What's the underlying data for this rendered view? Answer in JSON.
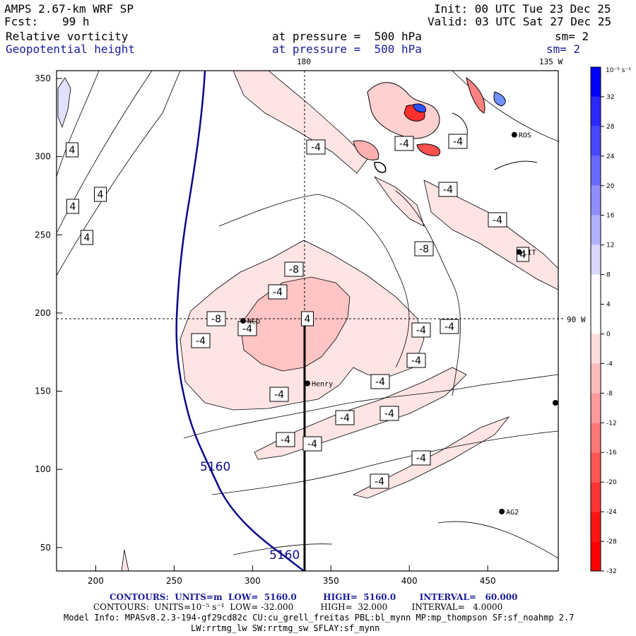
{
  "header": {
    "model": "AMPS 2.67-km WRF SP",
    "fcst_label": "Fcst:",
    "fcst_value": "99 h",
    "init": "Init: 00 UTC Tue 23 Dec 25",
    "valid": "Valid: 03 UTC Sat 27 Dec 25",
    "field1": "Relative vorticity",
    "field1_level": "at pressure =  500 hPa",
    "field1_sm": "sm= 2",
    "field2": "Geopotential height",
    "field2_level": "at pressure =  500 hPa",
    "field2_sm": "sm= 2"
  },
  "map_labels": {
    "lon_180": "180",
    "lon_135w": "135 W",
    "lon_90w": "90 W",
    "height_contour": "5160"
  },
  "stations": [
    "NCO",
    "Henry",
    "ROS",
    "LIT",
    "AG2"
  ],
  "colorbar": {
    "unit": "10⁻⁵ s⁻¹",
    "ticks": [
      "32",
      "28",
      "24",
      "20",
      "16",
      "12",
      "8",
      "4",
      "0",
      "-4",
      "-8",
      "-12",
      "-16",
      "-20",
      "-24",
      "-28",
      "-32"
    ],
    "colors": [
      "#0000ff",
      "#2a2aff",
      "#4848ff",
      "#6a6aff",
      "#8e8eff",
      "#b2b2ff",
      "#d8d8ff",
      "#ffffff",
      "#ffffff",
      "#ffdcdc",
      "#ffbcbc",
      "#ff9a9a",
      "#ff7878",
      "#ff5656",
      "#ff3434",
      "#ff1414",
      "#ff0000"
    ]
  },
  "chart_data": {
    "type": "contour-map",
    "x_ticks": [
      "200",
      "250",
      "300",
      "350",
      "400",
      "450"
    ],
    "y_ticks": [
      "50",
      "100",
      "150",
      "200",
      "250",
      "300",
      "350"
    ],
    "xlim": [
      175,
      495
    ],
    "ylim": [
      35,
      355
    ],
    "vorticity_labels": [
      "4",
      "4",
      "4",
      "4",
      "-4",
      "-4",
      "-4",
      "-4",
      "-4",
      "-8",
      "-8",
      "-4",
      "-8",
      "-4",
      "-4",
      "-4",
      "-4",
      "-4",
      "-4",
      "-4",
      "-4",
      "-4",
      "-4",
      "-4",
      "-4",
      "-4",
      "4",
      "4"
    ],
    "stations": [
      {
        "name": "NCO",
        "x": 294,
        "y": 195
      },
      {
        "name": "Henry",
        "x": 335,
        "y": 155
      },
      {
        "name": "ROS",
        "x": 467,
        "y": 314
      },
      {
        "name": "LIT",
        "x": 470,
        "y": 239
      },
      {
        "name": "AG2",
        "x": 459,
        "y": 73
      }
    ]
  },
  "footer": {
    "line1": "CONTOURS:  UNITS=m  LOW=  5160.0         HIGH=  5160.0        INTERVAL=   60.000",
    "line2": "CONTOURS:  UNITS=10⁻⁵ s⁻¹  LOW= -32.000          HIGH=  32.000         INTERVAL=   4.0000",
    "line3": "Model Info: MPASv8.2.3-194-gf29cd82c CU:cu_grell_freitas PBL:bl_mynn MP:mp_thompson SF:sf_noahmp 2.7",
    "line4": "LW:rrtmg_lw SW:rrtmg_sw SFLAY:sf_mynn"
  }
}
